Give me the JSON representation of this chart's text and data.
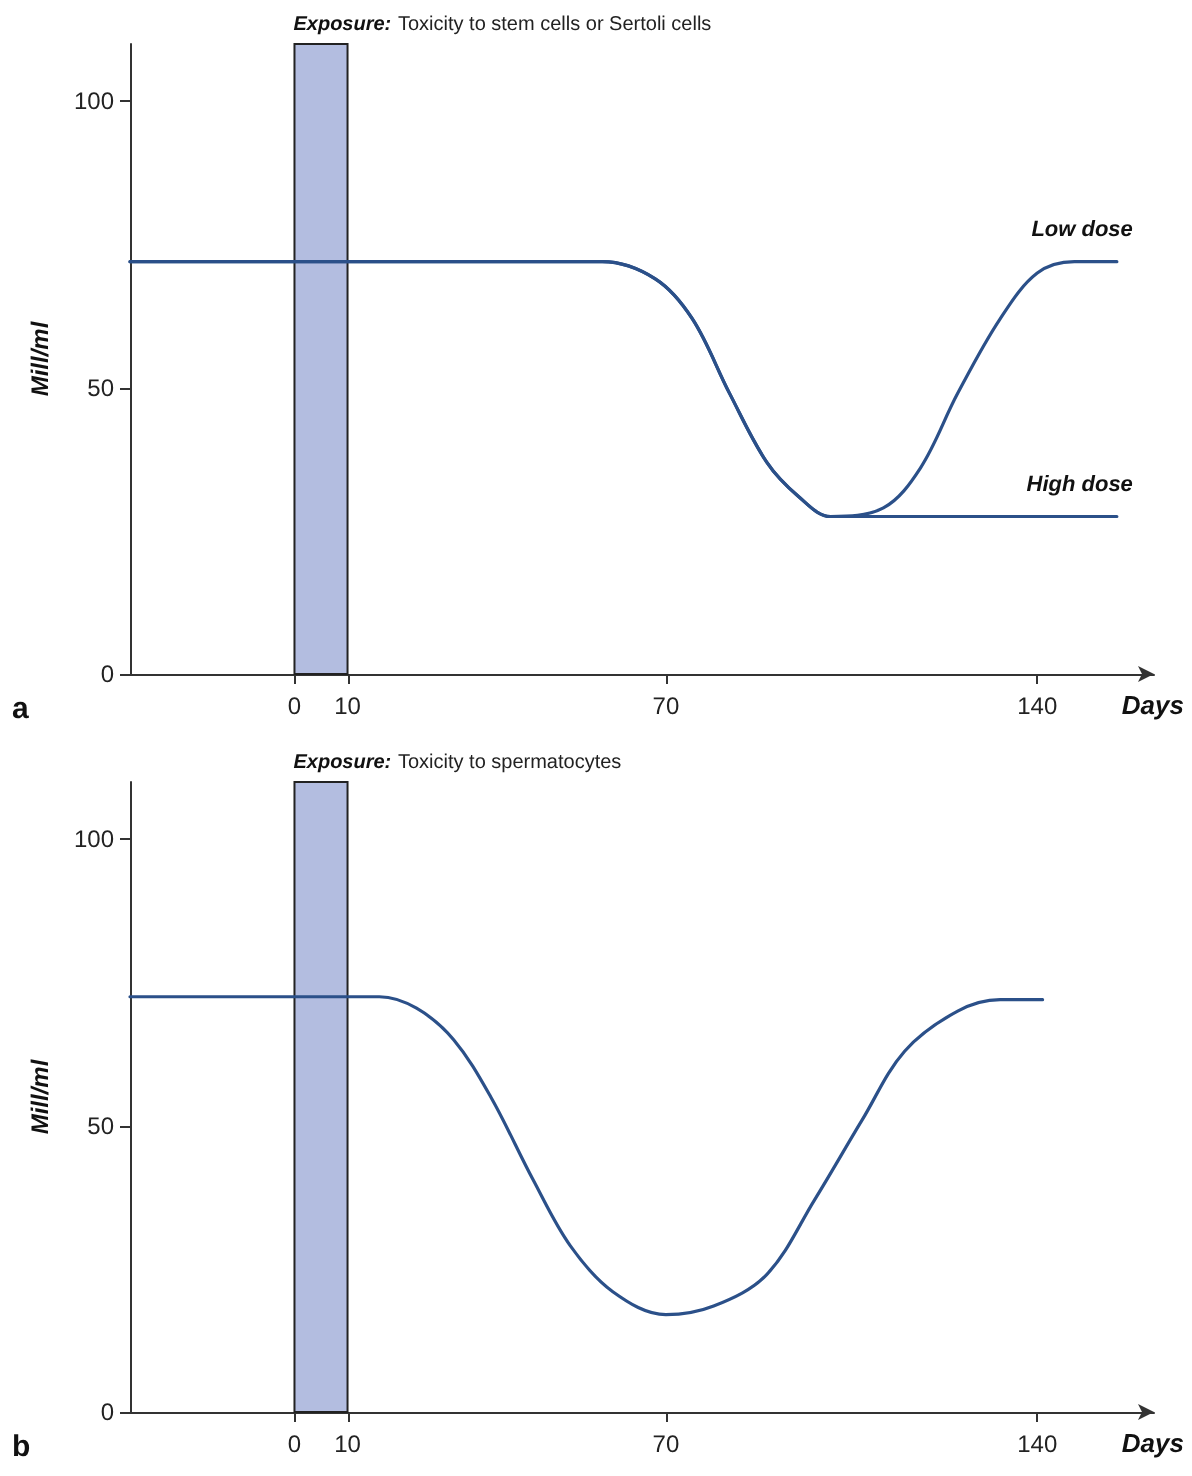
{
  "chart_data": [
    {
      "type": "line",
      "xlabel": "Days",
      "ylabel": "Mill/ml",
      "annotations": [
        "a"
      ],
      "xlim": [
        -31,
        162
      ],
      "xticks": [
        0,
        10,
        70,
        140
      ],
      "ylim": [
        0,
        110
      ],
      "yticks": [
        0,
        50,
        100
      ],
      "grid": false,
      "legend": false,
      "marker": "none",
      "line_style": "solid",
      "bands": [
        {
          "axis": "x",
          "from": 0,
          "to": 10,
          "label": "Exposure: Toxicity to stem cells or Sertoli cells",
          "color": "#b3bde0"
        }
      ],
      "series": [
        {
          "name": "Low dose",
          "color": "#2b5089",
          "x": [
            -31,
            58,
            68,
            75,
            82,
            89,
            95,
            101,
            111,
            118,
            125,
            133,
            140,
            147,
            155
          ],
          "values": [
            72,
            72,
            69,
            62,
            49,
            37,
            31,
            27.5,
            29,
            36,
            49,
            62,
            70,
            72,
            72
          ]
        },
        {
          "name": "High dose",
          "color": "#2b5089",
          "x": [
            -31,
            58,
            68,
            75,
            82,
            89,
            95,
            101,
            105,
            155
          ],
          "values": [
            72,
            72,
            69,
            62,
            49,
            37,
            31,
            27.5,
            27.5,
            27.5
          ]
        }
      ]
    },
    {
      "type": "line",
      "xlabel": "Days",
      "ylabel": "Mill/ml",
      "annotations": [
        "b"
      ],
      "xlim": [
        -31,
        162
      ],
      "xticks": [
        0,
        10,
        70,
        140
      ],
      "ylim": [
        0,
        110
      ],
      "yticks": [
        0,
        50,
        100
      ],
      "grid": false,
      "legend": false,
      "marker": "none",
      "line_style": "solid",
      "bands": [
        {
          "axis": "x",
          "from": 0,
          "to": 10,
          "label": "Exposure: Toxicity to spermatocytes",
          "color": "#b3bde0"
        }
      ],
      "series": [
        {
          "color": "#2b5089",
          "x": [
            -31,
            16,
            23,
            30,
            37,
            45,
            52,
            60,
            70,
            79,
            89,
            98,
            107,
            115,
            125,
            133,
            141
          ],
          "values": [
            72.5,
            72.5,
            70.5,
            65,
            55,
            40.5,
            29,
            21,
            17,
            18.5,
            24,
            37,
            51,
            63,
            70,
            72,
            72
          ]
        }
      ]
    }
  ]
}
